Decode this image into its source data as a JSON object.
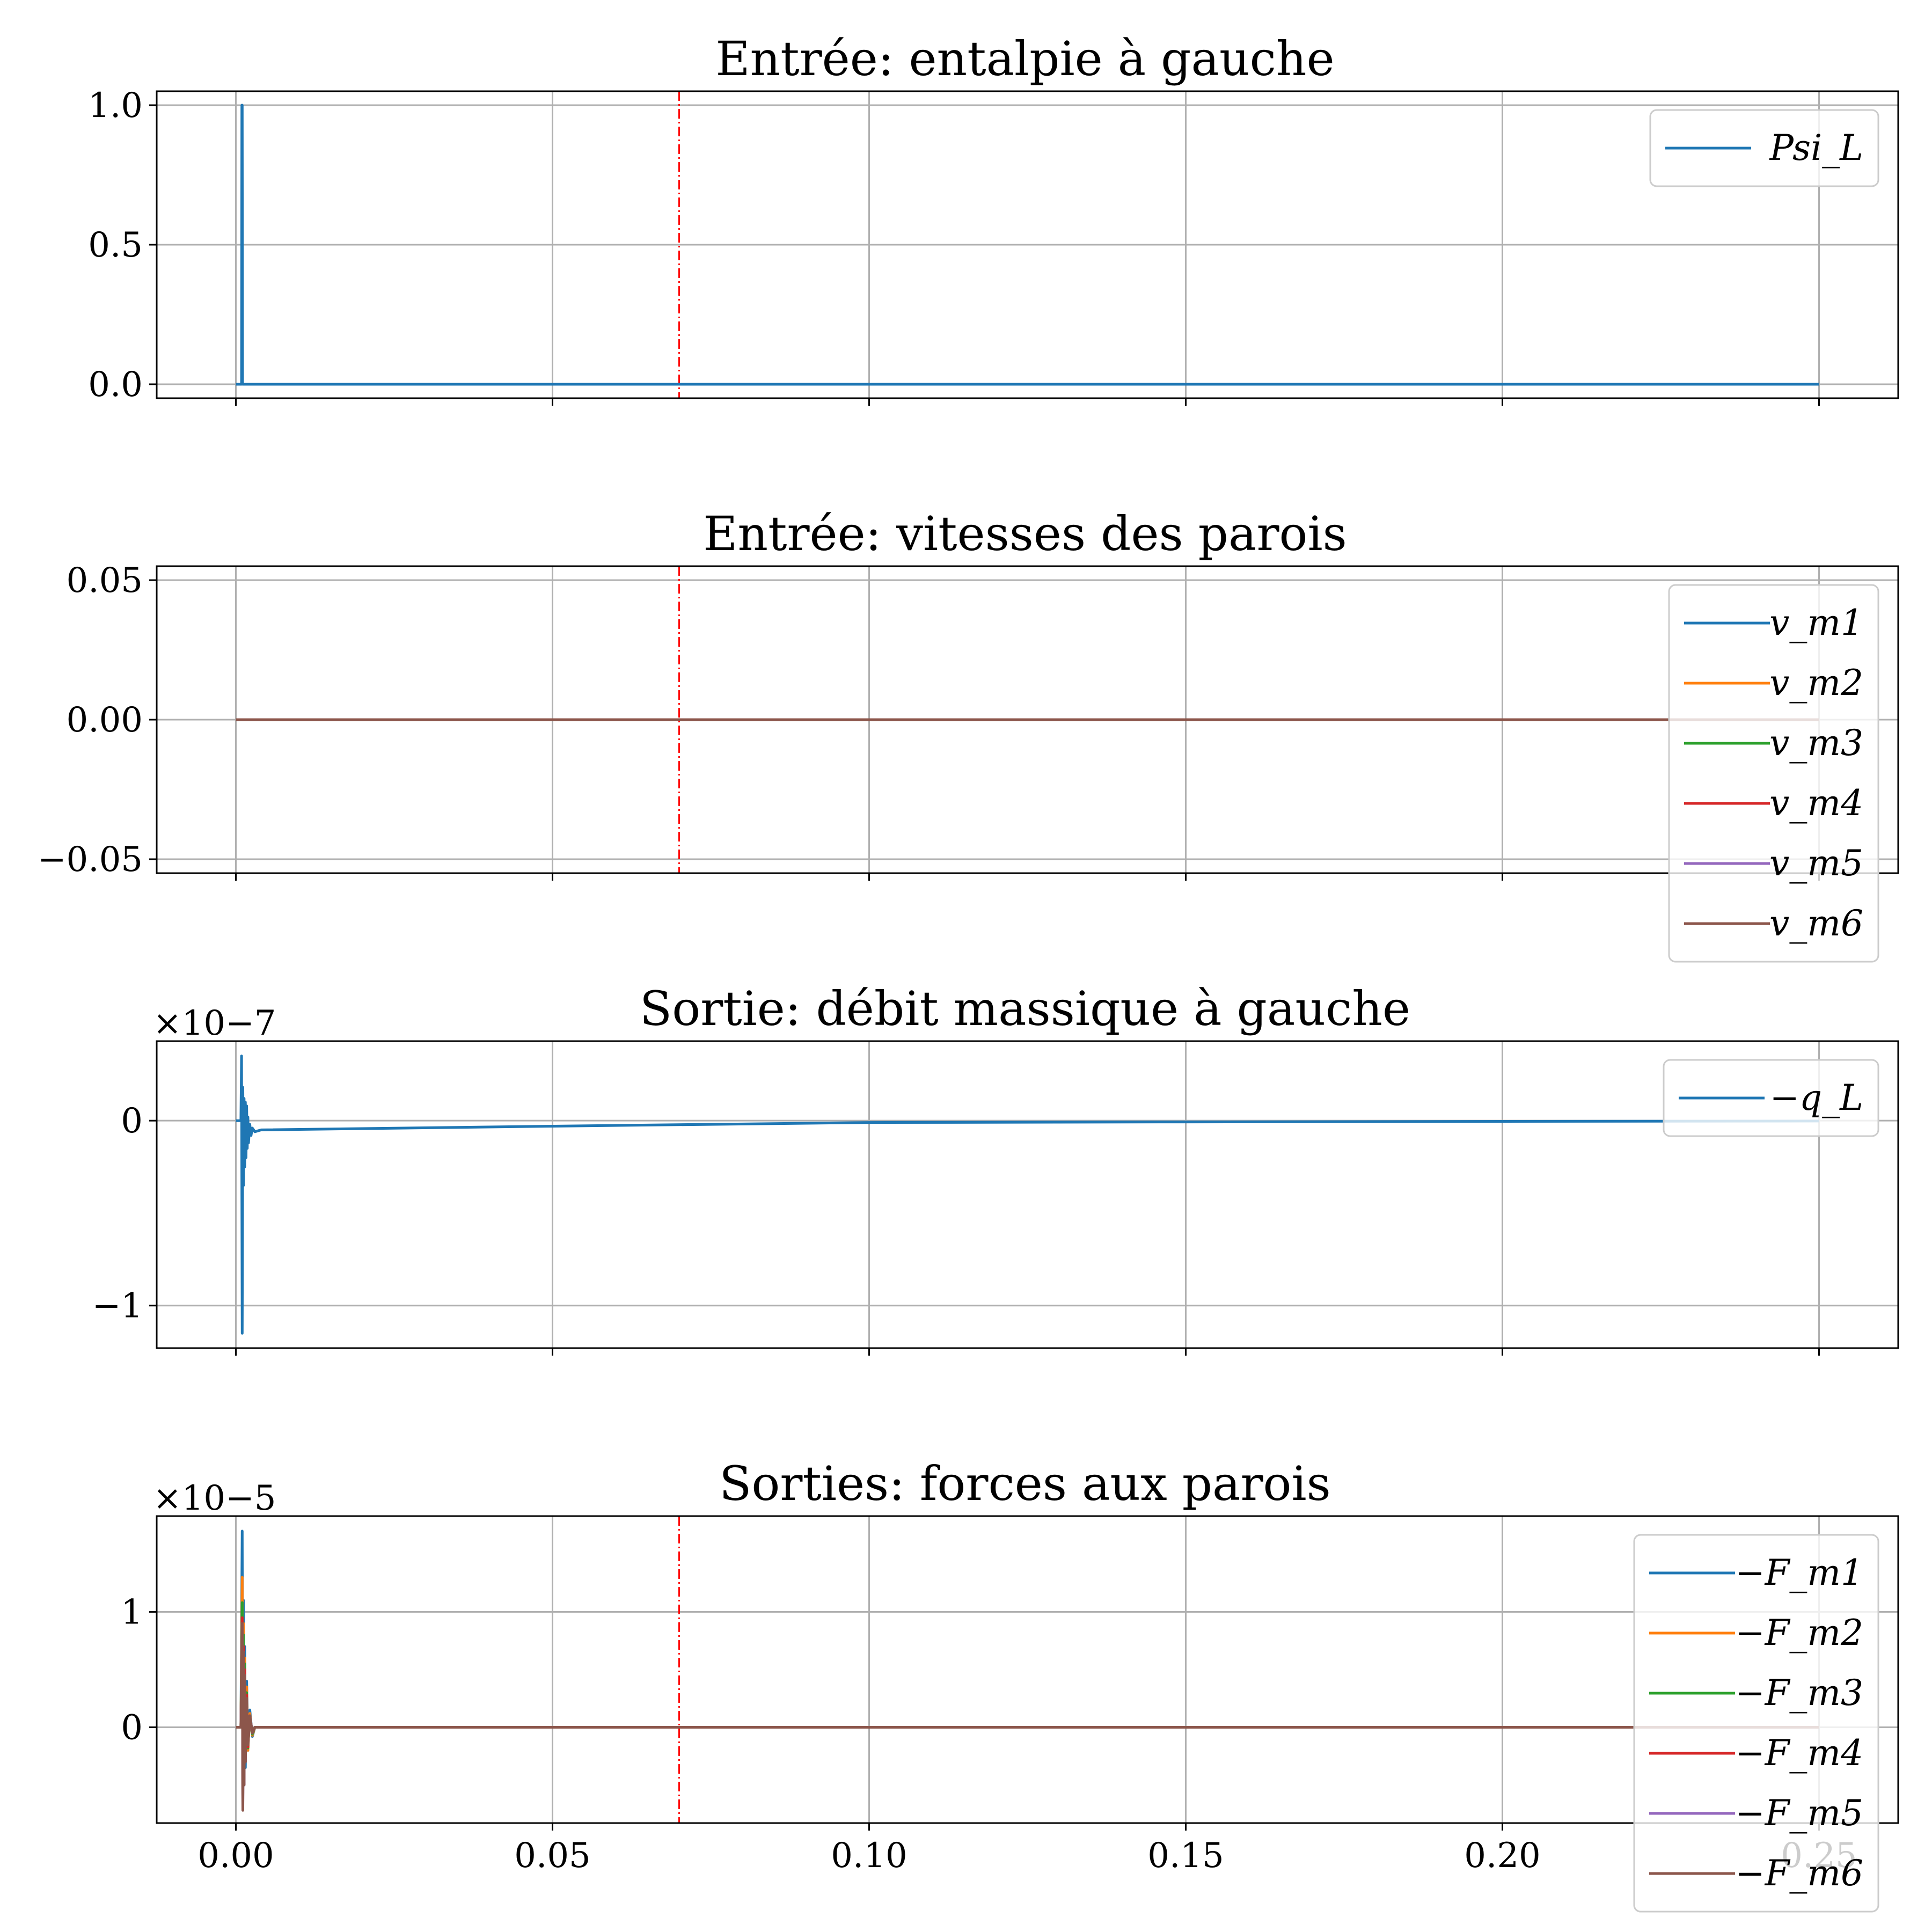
{
  "chart_data": [
    {
      "type": "line",
      "title": "Entrée: entalpie à gauche",
      "xlim": [
        -0.0125,
        0.2625
      ],
      "ylim": [
        -0.05,
        1.05
      ],
      "xticks": [
        0.0,
        0.05,
        0.1,
        0.15,
        0.2,
        0.25
      ],
      "show_xticklabels": false,
      "yticks": [
        0.0,
        0.5,
        1.0
      ],
      "yticklabels": [
        "0.0",
        "0.5",
        "1.0"
      ],
      "y_offset_label": "",
      "grid": true,
      "vline": 0.07,
      "legend_location": "top-right",
      "legend_box": false,
      "series": [
        {
          "name": "Psi_L",
          "color": "#1f77b4",
          "x": [
            0.0,
            0.0009,
            0.00095,
            0.001,
            0.00105,
            0.0011,
            0.25
          ],
          "y": [
            0,
            0,
            1.0,
            1.0,
            0,
            0,
            0
          ]
        }
      ]
    },
    {
      "type": "line",
      "title": "Entrée: vitesses des parois",
      "xlim": [
        -0.0125,
        0.2625
      ],
      "ylim": [
        -0.055,
        0.055
      ],
      "xticks": [
        0.0,
        0.05,
        0.1,
        0.15,
        0.2,
        0.25
      ],
      "show_xticklabels": false,
      "yticks": [
        -0.05,
        0.0,
        0.05
      ],
      "yticklabels": [
        "−0.05",
        "0.00",
        "0.05"
      ],
      "y_offset_label": "",
      "grid": true,
      "vline": 0.07,
      "legend_location": "top-right",
      "legend_box": true,
      "series": [
        {
          "name": "v_m1",
          "color": "#1f77b4",
          "x": [
            0.0,
            0.25
          ],
          "y": [
            0,
            0
          ]
        },
        {
          "name": "v_m2",
          "color": "#ff7f0e",
          "x": [
            0.0,
            0.25
          ],
          "y": [
            0,
            0
          ]
        },
        {
          "name": "v_m3",
          "color": "#2ca02c",
          "x": [
            0.0,
            0.25
          ],
          "y": [
            0,
            0
          ]
        },
        {
          "name": "v_m4",
          "color": "#d62728",
          "x": [
            0.0,
            0.25
          ],
          "y": [
            0,
            0
          ]
        },
        {
          "name": "v_m5",
          "color": "#9467bd",
          "x": [
            0.0,
            0.25
          ],
          "y": [
            0,
            0
          ]
        },
        {
          "name": "v_m6",
          "color": "#8c564b",
          "x": [
            0.0,
            0.25
          ],
          "y": [
            0,
            0
          ]
        }
      ]
    },
    {
      "type": "line",
      "title": "Sortie: débit massique à gauche",
      "xlim": [
        -0.0125,
        0.2625
      ],
      "ylim": [
        -1.23,
        0.43
      ],
      "xticks": [
        0.0,
        0.05,
        0.1,
        0.15,
        0.2,
        0.25
      ],
      "show_xticklabels": false,
      "yticks": [
        -1,
        0
      ],
      "yticklabels": [
        "−1",
        "0"
      ],
      "y_offset_label": "×10−7",
      "grid": true,
      "vline": null,
      "legend_location": "top-right",
      "legend_box": true,
      "series": [
        {
          "name": "−q_L",
          "color": "#1f77b4",
          "x": [
            0.0,
            0.0008,
            0.0009,
            0.001,
            0.0011,
            0.0012,
            0.0013,
            0.0014,
            0.0015,
            0.0016,
            0.0017,
            0.0018,
            0.0019,
            0.002,
            0.0022,
            0.0024,
            0.0026,
            0.003,
            0.004,
            0.05,
            0.1,
            0.15,
            0.2,
            0.25
          ],
          "y": [
            0,
            0,
            0.35,
            -1.15,
            0.18,
            -0.35,
            0.12,
            -0.25,
            0.1,
            -0.2,
            0.08,
            -0.15,
            0.02,
            -0.12,
            -0.02,
            -0.08,
            -0.04,
            -0.06,
            -0.05,
            -0.03,
            -0.01,
            -0.007,
            -0.004,
            -0.002
          ]
        }
      ]
    },
    {
      "type": "line",
      "title": "Sorties: forces aux parois",
      "xlim": [
        -0.0125,
        0.2625
      ],
      "ylim": [
        -0.83,
        1.83
      ],
      "xticks": [
        0.0,
        0.05,
        0.1,
        0.15,
        0.2,
        0.25
      ],
      "show_xticklabels": true,
      "xticklabels": [
        "0.00",
        "0.05",
        "0.10",
        "0.15",
        "0.20",
        "0.25"
      ],
      "yticks": [
        0,
        1
      ],
      "yticklabels": [
        "0",
        "1"
      ],
      "y_offset_label": "×10−5",
      "grid": true,
      "vline": 0.07,
      "legend_location": "top-right",
      "legend_box": true,
      "series": [
        {
          "name": "−F_m1",
          "color": "#1f77b4",
          "x": [
            0.0,
            0.0008,
            0.001,
            0.0011,
            0.0012,
            0.0013,
            0.0014,
            0.0015,
            0.0017,
            0.0019,
            0.0022,
            0.0026,
            0.003,
            0.25
          ],
          "y": [
            0,
            0,
            1.7,
            -0.6,
            1.1,
            -0.5,
            0.7,
            -0.35,
            0.4,
            -0.2,
            0.15,
            -0.08,
            0,
            0
          ]
        },
        {
          "name": "−F_m2",
          "color": "#ff7f0e",
          "x": [
            0.0,
            0.0008,
            0.001,
            0.0011,
            0.0012,
            0.0013,
            0.0014,
            0.0015,
            0.0017,
            0.0019,
            0.0022,
            0.0026,
            0.003,
            0.25
          ],
          "y": [
            0,
            0,
            1.3,
            -0.55,
            0.9,
            -0.45,
            0.6,
            -0.3,
            0.35,
            -0.2,
            0.12,
            -0.07,
            0,
            0
          ]
        },
        {
          "name": "−F_m3",
          "color": "#2ca02c",
          "x": [
            0.0,
            0.0008,
            0.001,
            0.0011,
            0.0012,
            0.0013,
            0.0014,
            0.0015,
            0.0017,
            0.0019,
            0.0022,
            0.0026,
            0.003,
            0.25
          ],
          "y": [
            0,
            0,
            1.08,
            -0.6,
            0.8,
            -0.5,
            0.55,
            -0.3,
            0.3,
            -0.18,
            0.1,
            -0.06,
            0,
            0
          ]
        },
        {
          "name": "−F_m4",
          "color": "#d62728",
          "x": [
            0.0,
            0.0008,
            0.001,
            0.0011,
            0.0012,
            0.0013,
            0.0014,
            0.0015,
            0.0017,
            0.0019,
            0.0022,
            0.0026,
            0.003,
            0.25
          ],
          "y": [
            0,
            0,
            0.95,
            -0.65,
            0.7,
            -0.5,
            0.5,
            -0.3,
            0.28,
            -0.17,
            0.1,
            -0.05,
            0,
            0
          ]
        },
        {
          "name": "−F_m5",
          "color": "#9467bd",
          "x": [
            0.0,
            0.0008,
            0.001,
            0.0011,
            0.0012,
            0.0013,
            0.0014,
            0.0015,
            0.0017,
            0.0019,
            0.0022,
            0.0026,
            0.003,
            0.25
          ],
          "y": [
            0,
            0,
            0.9,
            -0.7,
            0.65,
            -0.5,
            0.45,
            -0.3,
            0.25,
            -0.15,
            0.1,
            -0.05,
            0,
            0
          ]
        },
        {
          "name": "−F_m6",
          "color": "#8c564b",
          "x": [
            0.0,
            0.0008,
            0.001,
            0.0011,
            0.0012,
            0.0013,
            0.0014,
            0.0015,
            0.0017,
            0.0019,
            0.0022,
            0.0026,
            0.003,
            0.25
          ],
          "y": [
            0,
            0,
            0.9,
            -0.72,
            0.65,
            -0.5,
            0.45,
            -0.3,
            0.25,
            -0.15,
            0.1,
            -0.05,
            0,
            0
          ]
        }
      ]
    }
  ]
}
